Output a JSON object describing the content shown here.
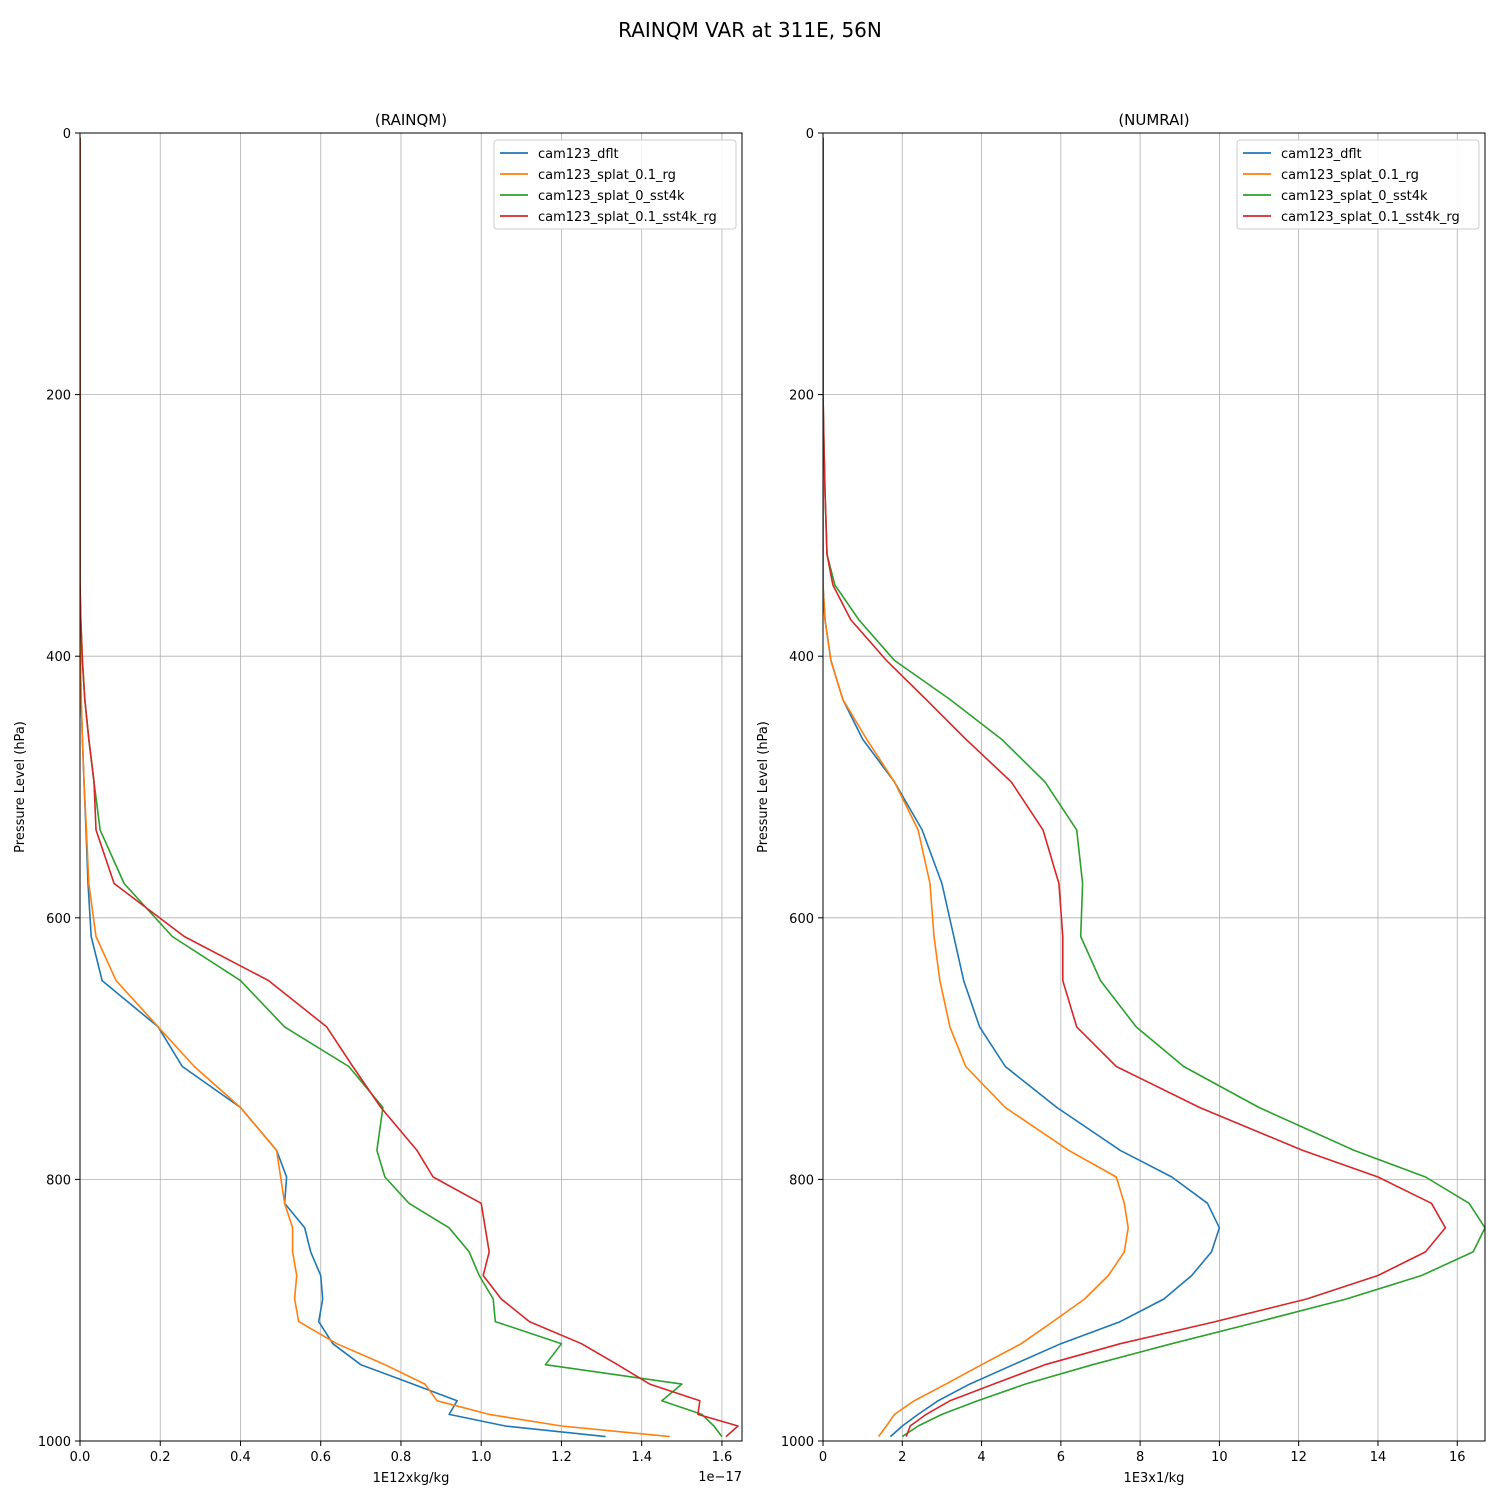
{
  "figure": {
    "title": "RAINQM VAR at 311E, 56N"
  },
  "colors": {
    "cam123_dflt": "#1f77b4",
    "cam123_splat_0.1_rg": "#ff7f0e",
    "cam123_splat_0_sst4k": "#2ca02c",
    "cam123_splat_0.1_sst4k_rg": "#d62728"
  },
  "chart_data": [
    {
      "type": "line",
      "title": "(RAINQM)",
      "xlabel": "1E12xkg/kg",
      "ylabel": "Pressure Level (hPa)",
      "x_offset_text": "1e−17",
      "xlim": [
        0,
        1.65
      ],
      "ylim": [
        1000,
        0
      ],
      "xticks": [
        "0.0",
        "0.2",
        "0.4",
        "0.6",
        "0.8",
        "1.0",
        "1.2",
        "1.4",
        "1.6"
      ],
      "yticks": [
        "0",
        "200",
        "400",
        "600",
        "800",
        "1000"
      ],
      "grid": true,
      "legend_position": "top-right",
      "y": [
        3.6,
        7.6,
        14.6,
        24.6,
        38.3,
        54.6,
        72.0,
        87.8,
        103.3,
        121.7,
        142.7,
        168.2,
        197.9,
        232.8,
        273.9,
        322.2,
        345.6,
        372.0,
        403.2,
        433.0,
        463.4,
        496.1,
        532.8,
        573.8,
        614.3,
        648.0,
        683.4,
        713.7,
        745.0,
        777.8,
        798.2,
        818.3,
        837.0,
        855.4,
        873.5,
        891.4,
        908.7,
        925.6,
        941.7,
        956.5,
        969.3,
        979.7,
        988.5,
        996.6
      ],
      "series": [
        {
          "name": "cam123_dflt",
          "values": [
            0,
            0,
            0,
            0,
            0,
            0,
            0,
            0,
            0,
            0,
            0,
            0,
            0,
            0,
            0,
            0,
            0,
            0.0003,
            0.001,
            0.003,
            0.006,
            0.01,
            0.015,
            0.02,
            0.028,
            0.055,
            0.195,
            0.255,
            0.4,
            0.49,
            0.515,
            0.51,
            0.56,
            0.575,
            0.6,
            0.605,
            0.595,
            0.63,
            0.7,
            0.83,
            0.94,
            0.92,
            1.06,
            1.31
          ]
        },
        {
          "name": "cam123_splat_0.1_rg",
          "values": [
            0,
            0,
            0,
            0,
            0,
            0,
            0,
            0,
            0,
            0,
            0,
            0,
            0,
            0,
            0,
            0,
            0,
            0.0003,
            0.001,
            0.003,
            0.006,
            0.01,
            0.016,
            0.022,
            0.04,
            0.09,
            0.195,
            0.285,
            0.4,
            0.49,
            0.5,
            0.51,
            0.53,
            0.53,
            0.54,
            0.535,
            0.545,
            0.64,
            0.76,
            0.86,
            0.89,
            1.02,
            1.2,
            1.47
          ]
        },
        {
          "name": "cam123_splat_0_sst4k",
          "values": [
            0,
            0,
            0,
            0,
            0,
            0,
            0,
            0,
            0,
            0,
            0,
            0,
            0,
            0,
            0,
            0,
            0,
            0.002,
            0.006,
            0.012,
            0.022,
            0.035,
            0.05,
            0.11,
            0.23,
            0.4,
            0.51,
            0.67,
            0.755,
            0.74,
            0.76,
            0.82,
            0.92,
            0.97,
            0.995,
            1.03,
            1.035,
            1.2,
            1.16,
            1.5,
            1.45,
            1.55,
            1.58,
            1.6
          ]
        },
        {
          "name": "cam123_splat_0.1_sst4k_rg",
          "values": [
            0,
            0,
            0,
            0,
            0,
            0,
            0,
            0,
            0,
            0,
            0,
            0,
            0,
            0,
            0,
            0,
            0,
            0.002,
            0.006,
            0.012,
            0.022,
            0.035,
            0.04,
            0.085,
            0.26,
            0.47,
            0.615,
            0.68,
            0.75,
            0.84,
            0.88,
            1.0,
            1.01,
            1.02,
            1.005,
            1.05,
            1.12,
            1.25,
            1.34,
            1.42,
            1.545,
            1.54,
            1.64,
            1.61
          ]
        }
      ]
    },
    {
      "type": "line",
      "title": "(NUMRAI)",
      "xlabel": "1E3x1/kg",
      "ylabel": "Pressure Level (hPa)",
      "xlim": [
        0,
        16.7
      ],
      "ylim": [
        1000,
        0
      ],
      "xticks": [
        "0",
        "2",
        "4",
        "6",
        "8",
        "10",
        "12",
        "14",
        "16"
      ],
      "yticks": [
        "0",
        "200",
        "400",
        "600",
        "800",
        "1000"
      ],
      "grid": true,
      "legend_position": "top-right",
      "y": [
        3.6,
        7.6,
        14.6,
        24.6,
        38.3,
        54.6,
        72.0,
        87.8,
        103.3,
        121.7,
        142.7,
        168.2,
        197.9,
        232.8,
        273.9,
        322.2,
        345.6,
        372.0,
        403.2,
        433.0,
        463.4,
        496.1,
        532.8,
        573.8,
        614.3,
        648.0,
        683.4,
        713.7,
        745.0,
        777.8,
        798.2,
        818.3,
        837.0,
        855.4,
        873.5,
        891.4,
        908.7,
        925.6,
        941.7,
        956.5,
        969.3,
        979.7,
        988.5,
        996.6
      ],
      "series": [
        {
          "name": "cam123_dflt",
          "values": [
            0,
            0,
            0,
            0,
            0,
            0,
            0,
            0,
            0,
            0,
            0,
            0,
            0,
            0,
            0,
            0,
            0,
            0.05,
            0.2,
            0.5,
            1.0,
            1.8,
            2.5,
            3.0,
            3.3,
            3.55,
            3.95,
            4.6,
            5.9,
            7.5,
            8.8,
            9.7,
            10.0,
            9.8,
            9.3,
            8.6,
            7.5,
            6.0,
            4.8,
            3.7,
            2.9,
            2.4,
            2.0,
            1.7
          ]
        },
        {
          "name": "cam123_splat_0.1_rg",
          "values": [
            0,
            0,
            0,
            0,
            0,
            0,
            0,
            0,
            0,
            0,
            0,
            0,
            0,
            0,
            0,
            0,
            0,
            0.05,
            0.2,
            0.5,
            1.1,
            1.8,
            2.4,
            2.7,
            2.8,
            2.95,
            3.2,
            3.6,
            4.6,
            6.2,
            7.4,
            7.6,
            7.7,
            7.6,
            7.2,
            6.6,
            5.8,
            5.0,
            4.0,
            3.1,
            2.3,
            1.8,
            1.6,
            1.4
          ]
        },
        {
          "name": "cam123_splat_0_sst4k",
          "values": [
            0,
            0,
            0,
            0,
            0,
            0,
            0,
            0,
            0,
            0,
            0,
            0,
            0,
            0.02,
            0.05,
            0.1,
            0.3,
            0.9,
            1.8,
            3.2,
            4.5,
            5.6,
            6.4,
            6.55,
            6.5,
            7.0,
            7.9,
            9.1,
            11.0,
            13.4,
            15.2,
            16.3,
            16.7,
            16.4,
            15.1,
            13.2,
            11.0,
            8.8,
            6.8,
            5.1,
            3.9,
            3.0,
            2.4,
            2.0
          ]
        },
        {
          "name": "cam123_splat_0.1_sst4k_rg",
          "values": [
            0,
            0,
            0,
            0,
            0,
            0,
            0,
            0,
            0,
            0,
            0,
            0,
            0,
            0.02,
            0.05,
            0.1,
            0.25,
            0.7,
            1.6,
            2.6,
            3.6,
            4.75,
            5.55,
            5.95,
            6.05,
            6.05,
            6.4,
            7.4,
            9.5,
            12.1,
            14.0,
            15.35,
            15.7,
            15.2,
            14.0,
            12.2,
            9.9,
            7.5,
            5.6,
            4.3,
            3.2,
            2.6,
            2.2,
            2.1
          ]
        }
      ]
    }
  ]
}
